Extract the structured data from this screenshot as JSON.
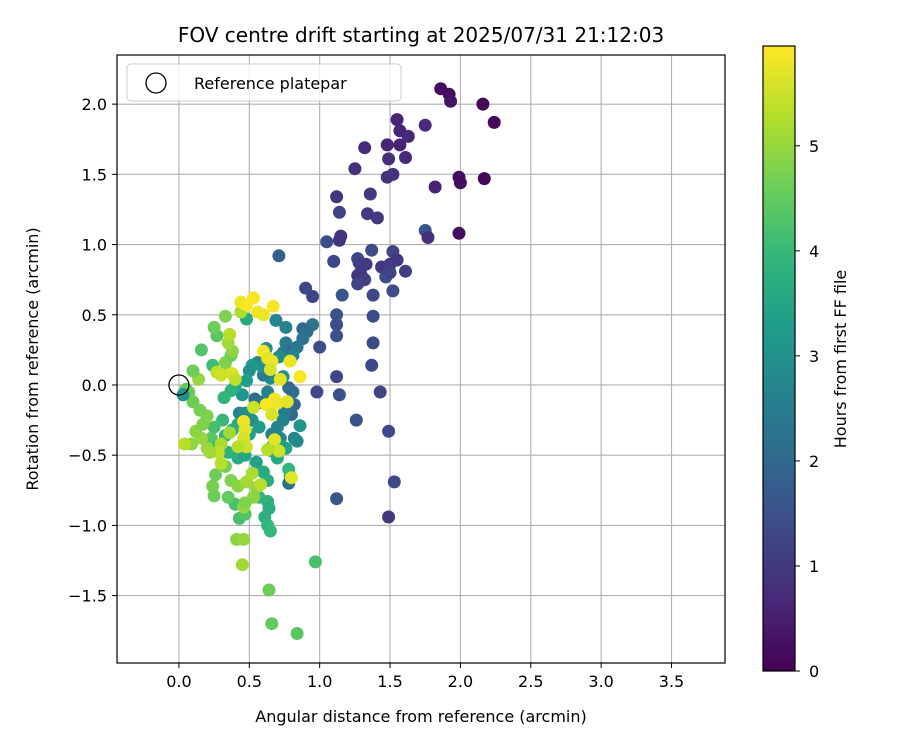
{
  "chart_data": {
    "type": "scatter",
    "title": "FOV centre drift starting at 2025/07/31 21:12:03",
    "xlabel": "Angular distance from reference (arcmin)",
    "ylabel": "Rotation from reference (arcmin)",
    "xlim": [
      -0.44,
      3.88
    ],
    "ylim": [
      -1.98,
      2.35
    ],
    "x_ticks": [
      "0.0",
      "0.5",
      "1.0",
      "1.5",
      "2.0",
      "2.5",
      "3.0",
      "3.5"
    ],
    "y_ticks": [
      "−1.5",
      "−1.0",
      "−0.5",
      "0.0",
      "0.5",
      "1.0",
      "1.5",
      "2.0"
    ],
    "x_tick_values": [
      0,
      0.5,
      1,
      1.5,
      2,
      2.5,
      3,
      3.5
    ],
    "y_tick_values": [
      -1.5,
      -1,
      -0.5,
      0,
      0.5,
      1,
      1.5,
      2
    ],
    "grid": true,
    "legend": {
      "position": "top-left",
      "label": "Reference platepar"
    },
    "reference_point": {
      "x": 0.0,
      "y": 0.0
    },
    "colorbar": {
      "label": "Hours from first FF file",
      "range": [
        0,
        5.95
      ],
      "tick_values": [
        0,
        1,
        2,
        3,
        4,
        5
      ],
      "tick_labels": [
        "0",
        "1",
        "2",
        "3",
        "4",
        "5"
      ],
      "colormap": "viridis",
      "stops": [
        "#440154",
        "#482878",
        "#3e4989",
        "#31688e",
        "#26828e",
        "#1f9e89",
        "#35b779",
        "#6ece58",
        "#b5de2b",
        "#fde725"
      ]
    },
    "marker_color_note": "point color encodes hours from first FF file",
    "points": [
      [
        1.86,
        2.11,
        0.2
      ],
      [
        1.92,
        2.07,
        0.2
      ],
      [
        1.93,
        2.02,
        0.3
      ],
      [
        2.16,
        2.0,
        0.1
      ],
      [
        2.24,
        1.87,
        0.1
      ],
      [
        1.55,
        1.89,
        0.6
      ],
      [
        1.57,
        1.81,
        0.6
      ],
      [
        1.63,
        1.77,
        0.7
      ],
      [
        1.75,
        1.85,
        0.7
      ],
      [
        1.48,
        1.71,
        0.6
      ],
      [
        1.57,
        1.71,
        0.6
      ],
      [
        1.32,
        1.69,
        0.7
      ],
      [
        1.49,
        1.61,
        0.8
      ],
      [
        1.61,
        1.62,
        0.7
      ],
      [
        1.25,
        1.54,
        0.8
      ],
      [
        1.52,
        1.5,
        0.9
      ],
      [
        1.48,
        1.48,
        0.9
      ],
      [
        1.99,
        1.48,
        0.2
      ],
      [
        2.0,
        1.44,
        0.2
      ],
      [
        2.17,
        1.47,
        0.1
      ],
      [
        1.82,
        1.41,
        0.6
      ],
      [
        1.36,
        1.36,
        1.0
      ],
      [
        1.12,
        1.34,
        0.9
      ],
      [
        1.14,
        1.23,
        1.2
      ],
      [
        1.34,
        1.22,
        1.0
      ],
      [
        1.41,
        1.19,
        1.0
      ],
      [
        1.75,
        1.1,
        1.6
      ],
      [
        1.77,
        1.05,
        0.8
      ],
      [
        1.99,
        1.08,
        0.2
      ],
      [
        1.15,
        1.06,
        0.9
      ],
      [
        1.14,
        1.03,
        0.9
      ],
      [
        1.05,
        1.02,
        1.4
      ],
      [
        1.37,
        0.96,
        1.4
      ],
      [
        1.52,
        0.95,
        1.2
      ],
      [
        1.1,
        0.88,
        1.3
      ],
      [
        1.27,
        0.9,
        1.3
      ],
      [
        1.28,
        0.87,
        1.1
      ],
      [
        1.33,
        0.86,
        1.0
      ],
      [
        1.44,
        0.84,
        0.9
      ],
      [
        1.55,
        0.89,
        1.0
      ],
      [
        1.5,
        0.86,
        1.0
      ],
      [
        1.61,
        0.81,
        1.1
      ],
      [
        1.27,
        0.78,
        0.9
      ],
      [
        1.29,
        0.8,
        1.0
      ],
      [
        1.47,
        0.77,
        1.4
      ],
      [
        1.31,
        0.76,
        1.0
      ],
      [
        1.32,
        0.75,
        1.1
      ],
      [
        1.27,
        0.72,
        1.2
      ],
      [
        1.5,
        0.8,
        1.2
      ],
      [
        1.52,
        0.67,
        1.4
      ],
      [
        1.38,
        0.64,
        1.3
      ],
      [
        1.16,
        0.64,
        1.6
      ],
      [
        0.9,
        0.69,
        1.3
      ],
      [
        0.95,
        0.63,
        1.2
      ],
      [
        0.71,
        0.92,
        1.8
      ],
      [
        1.12,
        0.5,
        1.5
      ],
      [
        1.12,
        0.43,
        1.4
      ],
      [
        1.38,
        0.49,
        1.4
      ],
      [
        1.12,
        0.35,
        1.5
      ],
      [
        1.38,
        0.3,
        1.4
      ],
      [
        1.0,
        0.27,
        1.4
      ],
      [
        0.95,
        0.43,
        2.3
      ],
      [
        0.88,
        0.4,
        2.0
      ],
      [
        0.91,
        0.38,
        2.1
      ],
      [
        0.88,
        0.33,
        2.3
      ],
      [
        0.76,
        0.41,
        2.6
      ],
      [
        0.69,
        0.46,
        2.7
      ],
      [
        0.48,
        0.47,
        3.6
      ],
      [
        0.76,
        0.3,
        2.4
      ],
      [
        0.8,
        0.24,
        2.0
      ],
      [
        0.74,
        0.23,
        2.4
      ],
      [
        0.84,
        0.27,
        2.4
      ],
      [
        0.81,
        0.21,
        2.6
      ],
      [
        0.71,
        0.2,
        2.9
      ],
      [
        1.37,
        0.14,
        1.3
      ],
      [
        1.12,
        0.06,
        1.3
      ],
      [
        1.14,
        -0.07,
        1.5
      ],
      [
        1.43,
        -0.05,
        1.2
      ],
      [
        0.98,
        -0.05,
        1.3
      ],
      [
        1.26,
        -0.25,
        1.5
      ],
      [
        1.49,
        -0.33,
        1.3
      ],
      [
        1.53,
        -0.69,
        1.3
      ],
      [
        1.49,
        -0.94,
        1.0
      ],
      [
        1.12,
        -0.81,
        1.6
      ],
      [
        0.78,
        -0.02,
        2.0
      ],
      [
        0.81,
        -0.05,
        2.1
      ],
      [
        0.82,
        -0.14,
        2.0
      ],
      [
        0.8,
        -0.21,
        2.1
      ],
      [
        0.86,
        -0.29,
        3.1
      ],
      [
        0.75,
        -0.19,
        2.5
      ],
      [
        0.74,
        -0.25,
        2.6
      ],
      [
        0.7,
        -0.3,
        2.7
      ],
      [
        0.66,
        -0.35,
        2.6
      ],
      [
        0.72,
        -0.38,
        2.6
      ],
      [
        0.82,
        -0.38,
        2.7
      ],
      [
        0.84,
        -0.4,
        2.8
      ],
      [
        0.76,
        -0.45,
        3.4
      ],
      [
        0.72,
        -0.43,
        3.3
      ],
      [
        0.67,
        -0.43,
        3.5
      ],
      [
        0.66,
        -0.47,
        3.6
      ],
      [
        0.7,
        -0.52,
        3.6
      ],
      [
        0.78,
        -0.6,
        3.9
      ],
      [
        0.79,
        -0.65,
        4.0
      ],
      [
        0.78,
        -0.7,
        2.2
      ],
      [
        0.56,
        -0.13,
        2.3
      ],
      [
        0.54,
        -0.1,
        2.2
      ],
      [
        0.6,
        -0.12,
        2.4
      ],
      [
        0.63,
        -0.05,
        2.6
      ],
      [
        0.65,
        0.05,
        2.8
      ],
      [
        0.6,
        0.07,
        2.5
      ],
      [
        0.56,
        0.16,
        2.7
      ],
      [
        0.62,
        0.26,
        2.9
      ],
      [
        0.74,
        0.06,
        3.0
      ],
      [
        0.59,
        0.13,
        3.0
      ],
      [
        0.52,
        0.14,
        3.2
      ],
      [
        0.5,
        0.1,
        3.0
      ],
      [
        0.48,
        0.03,
        3.3
      ],
      [
        0.45,
        -0.07,
        3.1
      ],
      [
        0.4,
        -0.01,
        3.6
      ],
      [
        0.37,
        -0.04,
        3.8
      ],
      [
        0.32,
        -0.09,
        3.9
      ],
      [
        0.43,
        -0.2,
        2.6
      ],
      [
        0.47,
        -0.2,
        2.9
      ],
      [
        0.52,
        -0.25,
        3.0
      ],
      [
        0.57,
        -0.3,
        3.2
      ],
      [
        0.5,
        -0.35,
        3.3
      ],
      [
        0.42,
        -0.28,
        3.6
      ],
      [
        0.38,
        -0.32,
        3.7
      ],
      [
        0.33,
        -0.36,
        3.9
      ],
      [
        0.31,
        -0.25,
        4.0
      ],
      [
        0.25,
        -0.3,
        4.2
      ],
      [
        0.23,
        -0.38,
        4.4
      ],
      [
        0.28,
        -0.44,
        4.0
      ],
      [
        0.35,
        -0.48,
        3.8
      ],
      [
        0.42,
        -0.52,
        3.7
      ],
      [
        0.47,
        -0.5,
        3.5
      ],
      [
        0.55,
        -0.55,
        3.4
      ],
      [
        0.6,
        -0.62,
        3.6
      ],
      [
        0.63,
        -0.68,
        3.7
      ],
      [
        0.57,
        -0.8,
        3.9
      ],
      [
        0.63,
        -0.83,
        3.8
      ],
      [
        0.64,
        -0.88,
        3.7
      ],
      [
        0.61,
        -0.94,
        3.8
      ],
      [
        0.63,
        -1.0,
        3.9
      ],
      [
        0.65,
        -1.04,
        4.0
      ],
      [
        0.43,
        -0.95,
        4.2
      ],
      [
        0.47,
        -0.92,
        4.3
      ],
      [
        0.4,
        -0.85,
        4.2
      ],
      [
        0.35,
        -0.8,
        4.5
      ],
      [
        0.25,
        -0.79,
        4.6
      ],
      [
        0.24,
        -0.72,
        4.7
      ],
      [
        0.26,
        -0.64,
        4.6
      ],
      [
        0.33,
        -0.58,
        4.7
      ],
      [
        0.37,
        -0.68,
        4.8
      ],
      [
        0.42,
        -0.72,
        4.9
      ],
      [
        0.46,
        -0.87,
        5.0
      ],
      [
        0.55,
        -0.73,
        5.0
      ],
      [
        0.48,
        -0.69,
        5.1
      ],
      [
        0.52,
        -0.63,
        5.2
      ],
      [
        0.2,
        -0.45,
        5.0
      ],
      [
        0.16,
        -0.38,
        5.0
      ],
      [
        0.12,
        -0.33,
        4.9
      ],
      [
        0.17,
        -0.28,
        4.8
      ],
      [
        0.2,
        -0.22,
        4.8
      ],
      [
        0.15,
        -0.18,
        4.7
      ],
      [
        0.1,
        -0.12,
        4.6
      ],
      [
        0.07,
        -0.05,
        4.6
      ],
      [
        0.05,
        -0.03,
        4.5
      ],
      [
        0.03,
        -0.07,
        3.0
      ],
      [
        0.09,
        -0.42,
        4.9
      ],
      [
        0.04,
        -0.42,
        5.3
      ],
      [
        0.14,
        0.04,
        5.0
      ],
      [
        0.1,
        0.1,
        4.6
      ],
      [
        0.16,
        0.25,
        4.3
      ],
      [
        0.24,
        0.14,
        4.1
      ],
      [
        0.27,
        0.09,
        5.4
      ],
      [
        0.3,
        0.07,
        5.5
      ],
      [
        0.34,
        0.1,
        5.5
      ],
      [
        0.38,
        0.08,
        5.6
      ],
      [
        0.4,
        0.04,
        5.4
      ],
      [
        0.33,
        0.16,
        4.8
      ],
      [
        0.37,
        0.21,
        4.6
      ],
      [
        0.38,
        0.24,
        4.9
      ],
      [
        0.35,
        0.3,
        5.1
      ],
      [
        0.36,
        0.36,
        5.3
      ],
      [
        0.27,
        0.35,
        4.4
      ],
      [
        0.25,
        0.41,
        4.6
      ],
      [
        0.33,
        0.49,
        4.8
      ],
      [
        0.44,
        0.52,
        5.2
      ],
      [
        0.44,
        0.59,
        5.8
      ],
      [
        0.48,
        0.57,
        5.9
      ],
      [
        0.53,
        0.62,
        5.9
      ],
      [
        0.56,
        0.52,
        5.8
      ],
      [
        0.6,
        0.5,
        5.8
      ],
      [
        0.67,
        0.56,
        5.9
      ],
      [
        0.6,
        0.24,
        5.9
      ],
      [
        0.63,
        0.19,
        5.7
      ],
      [
        0.66,
        0.17,
        5.8
      ],
      [
        0.65,
        0.11,
        5.6
      ],
      [
        0.72,
        0.04,
        5.7
      ],
      [
        0.79,
        0.17,
        5.8
      ],
      [
        0.86,
        0.06,
        5.9
      ],
      [
        0.62,
        -0.14,
        5.9
      ],
      [
        0.68,
        -0.1,
        5.9
      ],
      [
        0.7,
        -0.13,
        5.8
      ],
      [
        0.77,
        -0.12,
        5.7
      ],
      [
        0.66,
        -0.21,
        5.6
      ],
      [
        0.53,
        -0.16,
        5.5
      ],
      [
        0.46,
        -0.26,
        5.8
      ],
      [
        0.47,
        -0.32,
        5.7
      ],
      [
        0.46,
        -0.38,
        5.6
      ],
      [
        0.48,
        -0.44,
        5.5
      ],
      [
        0.42,
        -0.44,
        5.3
      ],
      [
        0.36,
        -0.34,
        5.1
      ],
      [
        0.3,
        -0.42,
        5.2
      ],
      [
        0.28,
        -0.48,
        5.4
      ],
      [
        0.3,
        -0.56,
        5.3
      ],
      [
        0.22,
        -0.48,
        5.1
      ],
      [
        0.68,
        -0.39,
        5.7
      ],
      [
        0.71,
        -0.47,
        5.5
      ],
      [
        0.63,
        -0.46,
        5.3
      ],
      [
        0.8,
        -0.66,
        5.7
      ],
      [
        0.58,
        -0.71,
        5.3
      ],
      [
        0.53,
        -0.8,
        4.9
      ],
      [
        0.47,
        -0.84,
        4.8
      ],
      [
        0.41,
        -1.1,
        4.9
      ],
      [
        0.46,
        -1.1,
        5.0
      ],
      [
        0.45,
        -1.28,
        5.1
      ],
      [
        0.64,
        -1.46,
        4.6
      ],
      [
        0.97,
        -1.26,
        4.2
      ],
      [
        0.66,
        -1.7,
        4.5
      ],
      [
        0.84,
        -1.77,
        4.4
      ]
    ]
  }
}
